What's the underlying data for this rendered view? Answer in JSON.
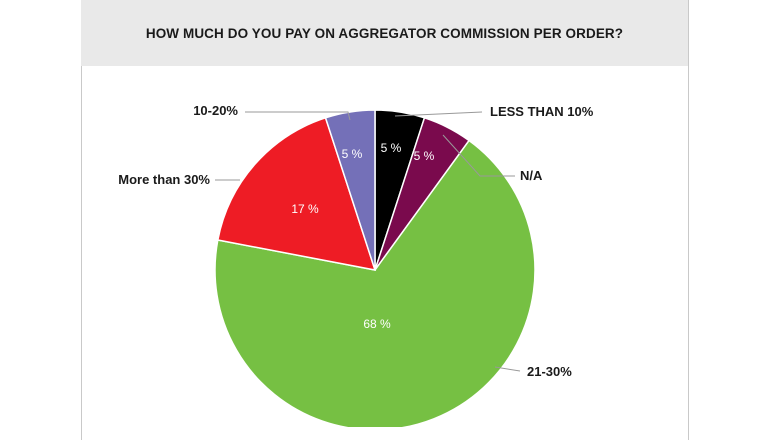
{
  "chart_data": {
    "type": "pie",
    "title": "HOW MUCH DO YOU PAY ON AGGREGATOR COMMISSION PER ORDER?",
    "slices": [
      {
        "label": "LESS THAN 10%",
        "value": 5,
        "value_label": "5 %",
        "color": "#000000"
      },
      {
        "label": "N/A",
        "value": 5,
        "value_label": "5 %",
        "color": "#7a0a4d"
      },
      {
        "label": "21-30%",
        "value": 68,
        "value_label": "68 %",
        "color": "#76c043"
      },
      {
        "label": "More than 30%",
        "value": 17,
        "value_label": "17 %",
        "color": "#ee1c25"
      },
      {
        "label": "10-20%",
        "value": 5,
        "value_label": "5 %",
        "color": "#7470b8"
      }
    ],
    "start": "12 o'clock",
    "direction": "clockwise"
  }
}
